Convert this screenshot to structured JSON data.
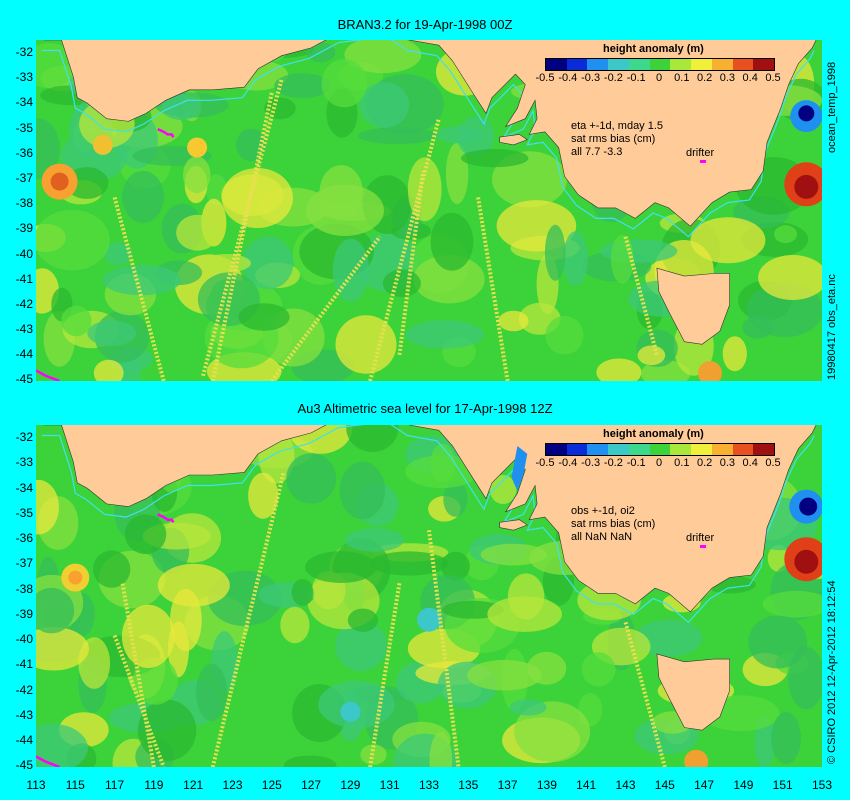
{
  "panels": [
    {
      "title": "BRAN3.2 for 19-Apr-1998 00Z",
      "info": [
        "eta +-1d, mday 1.5",
        "sat rms bias (cm)",
        "all 7.7 -3.3"
      ],
      "side_top": "ocean_temp_1998",
      "side_bottom": "19980417 obs_eta.nc"
    },
    {
      "title": "Au3 Altimetric sea level  for 17-Apr-1998 12Z",
      "info": [
        "obs +-1d, oi2",
        "sat rms bias (cm)",
        "all NaN NaN"
      ],
      "side_bottom": "© CSIRO 2012   12-Apr-2012 18:12:54"
    }
  ],
  "legend": {
    "title": "height anomaly  (m)",
    "ticks": [
      "-0.5",
      "-0.4",
      "-0.3",
      "-0.2",
      "-0.1",
      "0",
      "0.1",
      "0.2",
      "0.3",
      "0.4",
      "0.5"
    ],
    "colors": [
      "#000080",
      "#0a2cd8",
      "#1f8ff0",
      "#3cc8c8",
      "#3cd98c",
      "#3cd23a",
      "#a8e83a",
      "#f0f03a",
      "#f8b030",
      "#e85020",
      "#a01010"
    ]
  },
  "drifter_label": "drifter",
  "y_ticks": [
    "-32",
    "-33",
    "-34",
    "-35",
    "-36",
    "-37",
    "-38",
    "-39",
    "-40",
    "-41",
    "-42",
    "-43",
    "-44",
    "-45"
  ],
  "x_ticks": [
    "113",
    "115",
    "117",
    "119",
    "121",
    "123",
    "125",
    "127",
    "129",
    "131",
    "133",
    "135",
    "137",
    "139",
    "141",
    "143",
    "145",
    "147",
    "149",
    "151",
    "153"
  ],
  "colors": {
    "background": "#00ffff",
    "land": "#ffcc99",
    "ocean_base": "#3cd23a",
    "drifter": "#ff00ff"
  }
}
